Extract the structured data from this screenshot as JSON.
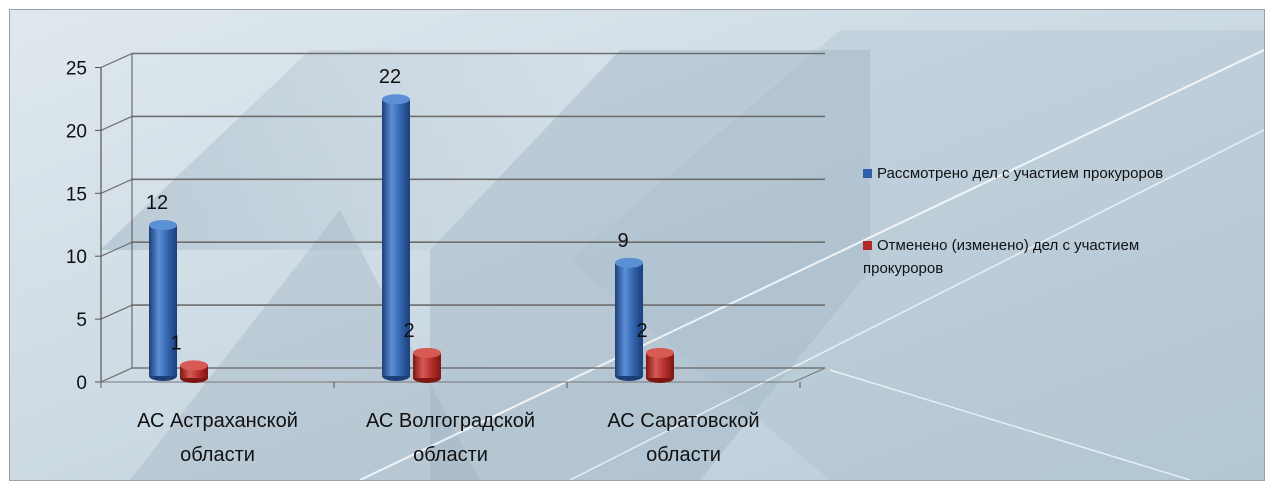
{
  "chart_data": {
    "type": "bar",
    "categories": [
      "АС Астраханской области",
      "АС Волгоградской области",
      "АС Саратовской области"
    ],
    "category_lines": [
      [
        "АС Астраханской",
        "области"
      ],
      [
        "АС Волгоградской",
        "области"
      ],
      [
        "АС Саратовской",
        "области"
      ]
    ],
    "series": [
      {
        "name": "Рассмотрено дел с участием прокуроров",
        "values": [
          12,
          22,
          9
        ],
        "color": "#2e5fa8",
        "color_light": "#5b8fd6",
        "color_dark": "#1d3f78"
      },
      {
        "name": "Отменено (изменено) дел с участием прокуроров",
        "values": [
          1,
          2,
          2
        ],
        "color": "#b12a27",
        "color_light": "#d85a55",
        "color_dark": "#7d1714"
      }
    ],
    "ylim": [
      0,
      25
    ],
    "yticks": [
      0,
      5,
      10,
      15,
      20,
      25
    ],
    "grid": true,
    "legend_position": "right",
    "title": "",
    "xlabel": "",
    "ylabel": ""
  },
  "colors": {
    "background": "#c9d9e4",
    "gridline": "#6e6e6e"
  }
}
